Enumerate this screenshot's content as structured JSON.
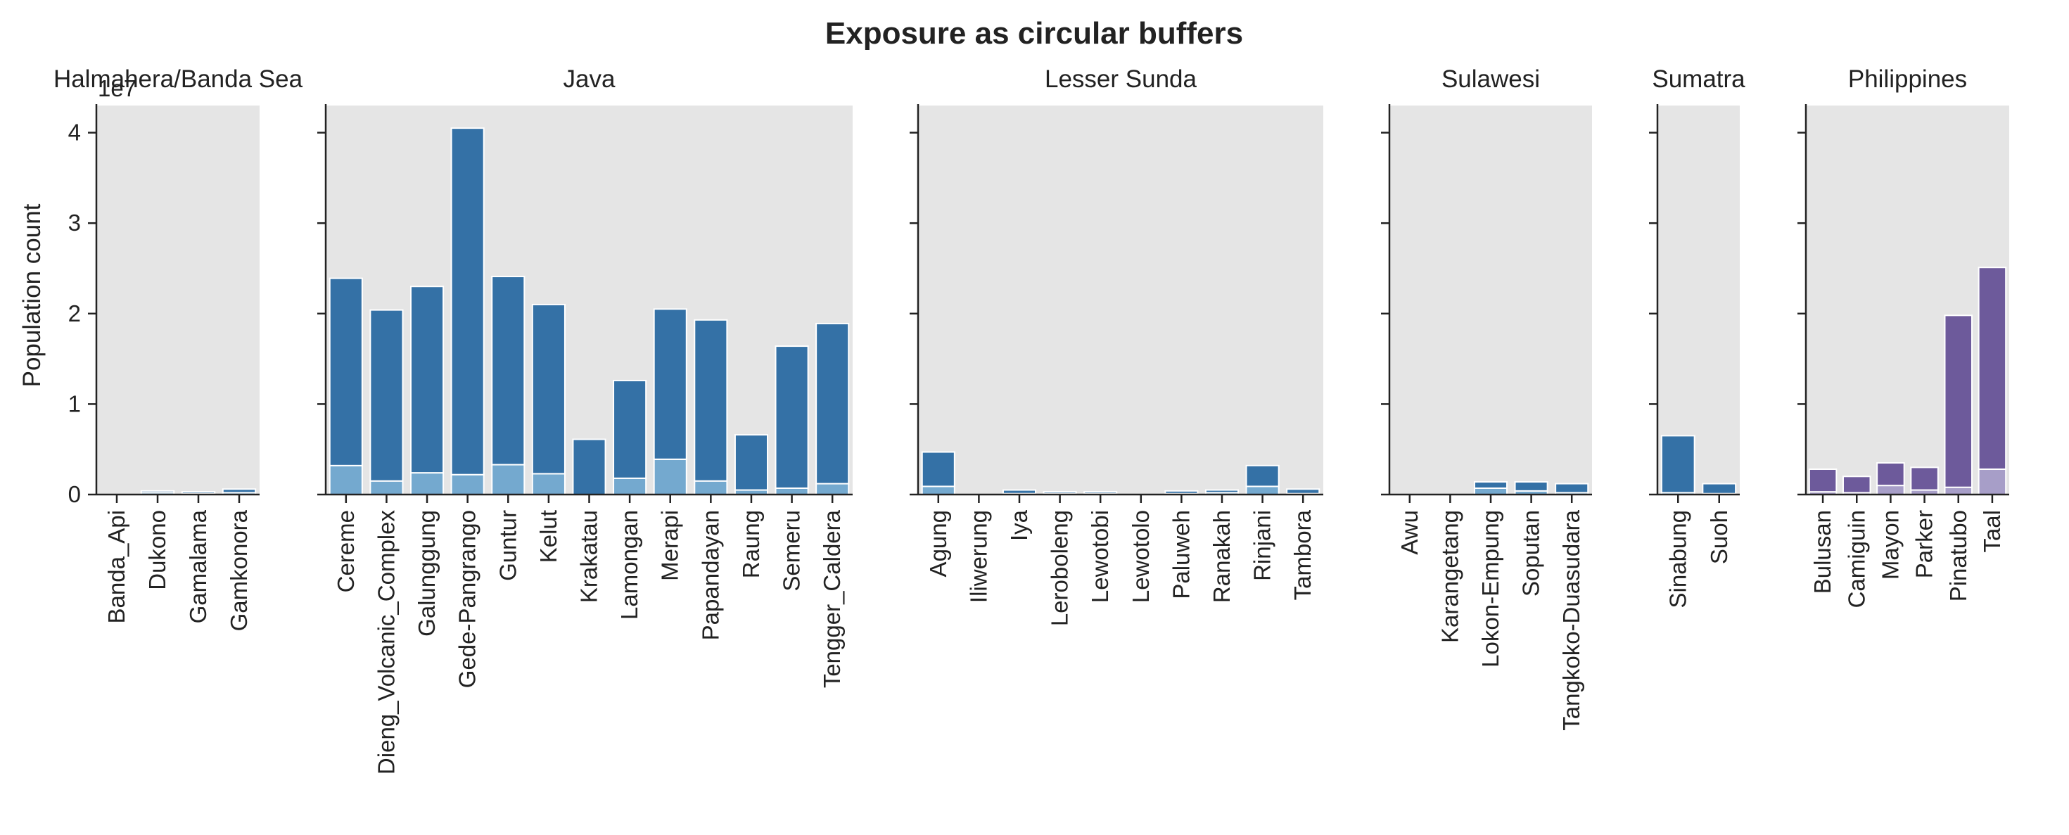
{
  "chart_data": {
    "type": "bar",
    "stacked": true,
    "title": "Exposure as circular buffers",
    "ylabel": "Population count",
    "y_scale_label": "1e7",
    "ylim": [
      0,
      4.3
    ],
    "yticks": [
      0,
      1,
      2,
      3,
      4
    ],
    "grid": false,
    "panels": [
      {
        "name": "Halmahera/Banda Sea",
        "categories": [
          "Banda_Api",
          "Dukono",
          "Gamalama",
          "Gamkonora"
        ],
        "series": [
          {
            "color": "#74a9cf",
            "values": [
              0.0,
              0.02,
              0.01,
              0.02
            ]
          },
          {
            "color": "#3471a6",
            "values": [
              0.0,
              0.02,
              0.02,
              0.04
            ]
          }
        ]
      },
      {
        "name": "Java",
        "categories": [
          "Cereme",
          "Dieng_Volcanic_Complex",
          "Galunggung",
          "Gede-Pangrango",
          "Guntur",
          "Kelut",
          "Krakatau",
          "Lamongan",
          "Merapi",
          "Papandayan",
          "Raung",
          "Semeru",
          "Tengger_Caldera"
        ],
        "series": [
          {
            "color": "#74a9cf",
            "values": [
              0.32,
              0.15,
              0.24,
              0.22,
              0.33,
              0.23,
              0.0,
              0.18,
              0.39,
              0.15,
              0.05,
              0.07,
              0.12
            ]
          },
          {
            "color": "#3471a6",
            "values": [
              2.07,
              1.89,
              2.06,
              3.83,
              2.08,
              1.87,
              0.61,
              1.08,
              1.66,
              1.78,
              0.61,
              1.57,
              1.77
            ]
          }
        ]
      },
      {
        "name": "Lesser Sunda",
        "categories": [
          "Agung",
          "Iliwerung",
          "Iya",
          "Leroboleng",
          "Lewotobi",
          "Lewotolo",
          "Paluweh",
          "Ranakah",
          "Rinjani",
          "Tambora"
        ],
        "series": [
          {
            "color": "#74a9cf",
            "values": [
              0.09,
              0.0,
              0.01,
              0.01,
              0.01,
              0.0,
              0.01,
              0.02,
              0.09,
              0.01
            ]
          },
          {
            "color": "#3471a6",
            "values": [
              0.38,
              0.0,
              0.04,
              0.02,
              0.02,
              0.0,
              0.03,
              0.03,
              0.23,
              0.05
            ]
          }
        ]
      },
      {
        "name": "Sulawesi",
        "categories": [
          "Awu",
          "Karangetang",
          "Lokon-Empung",
          "Soputan",
          "Tangkoko-Duasudara"
        ],
        "series": [
          {
            "color": "#74a9cf",
            "values": [
              0.0,
              0.0,
              0.07,
              0.04,
              0.02
            ]
          },
          {
            "color": "#3471a6",
            "values": [
              0.0,
              0.0,
              0.07,
              0.1,
              0.1
            ]
          }
        ]
      },
      {
        "name": "Sumatra",
        "categories": [
          "Sinabung",
          "Suoh"
        ],
        "series": [
          {
            "color": "#74a9cf",
            "values": [
              0.02,
              0.01
            ]
          },
          {
            "color": "#3471a6",
            "values": [
              0.63,
              0.11
            ]
          }
        ]
      },
      {
        "name": "Philippines",
        "categories": [
          "Bulusan",
          "Camiguin",
          "Mayon",
          "Parker",
          "Pinatubo",
          "Taal"
        ],
        "series": [
          {
            "color": "#a79ec8",
            "values": [
              0.03,
              0.02,
              0.1,
              0.05,
              0.08,
              0.28
            ]
          },
          {
            "color": "#6d5a9b",
            "values": [
              0.25,
              0.18,
              0.25,
              0.25,
              1.9,
              2.23
            ]
          }
        ]
      }
    ]
  }
}
